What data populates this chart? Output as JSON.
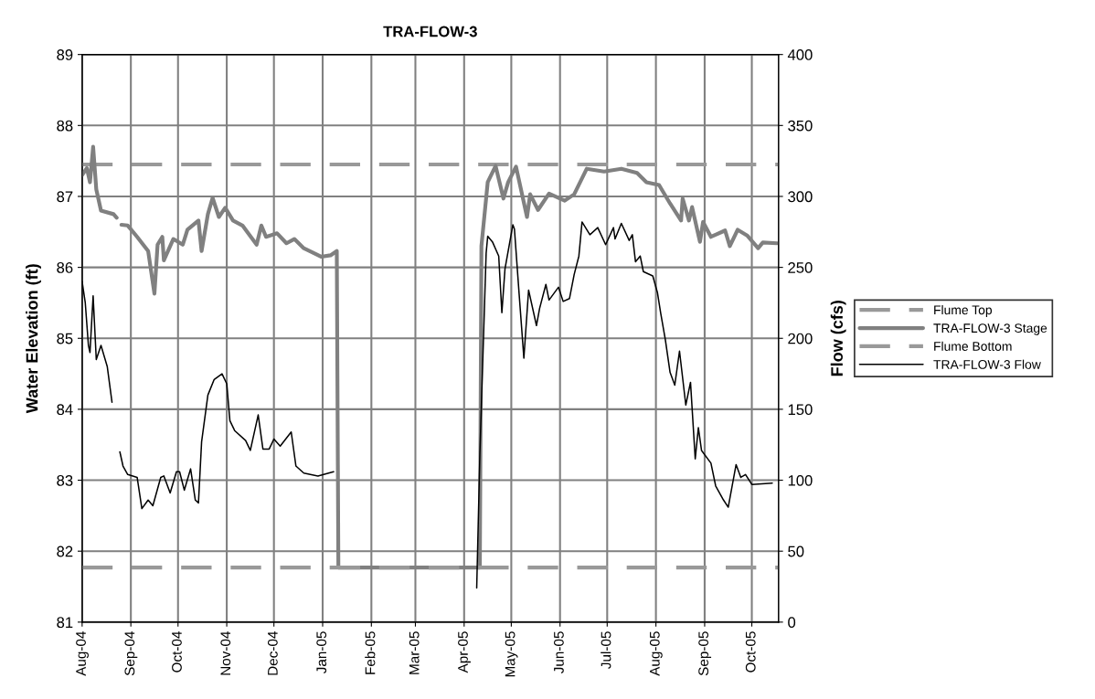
{
  "chart_data": {
    "type": "line",
    "title": "TRA-FLOW-3",
    "ylabel": "Water Elevation (ft)",
    "y2label": "Flow (cfs)",
    "xlim": [
      "2004-08-01",
      "2005-10-18"
    ],
    "xticks": [
      {
        "value": "2004-08-01",
        "label": "Aug-04"
      },
      {
        "value": "2004-09-01",
        "label": "Sep-04"
      },
      {
        "value": "2004-10-01",
        "label": "Oct-04"
      },
      {
        "value": "2004-11-01",
        "label": "Nov-04"
      },
      {
        "value": "2004-12-01",
        "label": "Dec-04"
      },
      {
        "value": "2005-01-01",
        "label": "Jan-05"
      },
      {
        "value": "2005-02-01",
        "label": "Feb-05"
      },
      {
        "value": "2005-03-01",
        "label": "Mar-05"
      },
      {
        "value": "2005-04-01",
        "label": "Apr-05"
      },
      {
        "value": "2005-05-01",
        "label": "May-05"
      },
      {
        "value": "2005-06-01",
        "label": "Jun-05"
      },
      {
        "value": "2005-07-01",
        "label": "Jul-05"
      },
      {
        "value": "2005-08-01",
        "label": "Aug-05"
      },
      {
        "value": "2005-09-01",
        "label": "Sep-05"
      },
      {
        "value": "2005-10-01",
        "label": "Oct-05"
      }
    ],
    "ylim": [
      81,
      89
    ],
    "yticks": [
      81,
      82,
      83,
      84,
      85,
      86,
      87,
      88,
      89
    ],
    "y2lim": [
      0,
      400
    ],
    "y2ticks": [
      0,
      50,
      100,
      150,
      200,
      250,
      300,
      350,
      400
    ],
    "grid": true,
    "legend": "right",
    "marker": "none",
    "series": [
      {
        "name": "Flume Top",
        "color": "#999999",
        "line_style": "dashed",
        "x": [
          "2004-08-01",
          "2005-10-18"
        ],
        "values": [
          87.45,
          87.45
        ]
      },
      {
        "name": "TRA-FLOW-3 Stage",
        "color": "#808080",
        "x": [
          "2004-08-01",
          "2004-08-04",
          "2004-08-06",
          "2004-08-08",
          "2004-08-10",
          "2004-08-13",
          "2004-08-21",
          "2004-08-23",
          "2004-08-24",
          "2004-08-26",
          "2004-08-30",
          "2004-09-05",
          "2004-09-12",
          "2004-09-16",
          "2004-09-18",
          "2004-09-21",
          "2004-09-22",
          "2004-09-28",
          "2004-10-04",
          "2004-10-07",
          "2004-10-14",
          "2004-10-16",
          "2004-10-20",
          "2004-10-23",
          "2004-10-27",
          "2004-10-31",
          "2004-11-05",
          "2004-11-11",
          "2004-11-20",
          "2004-11-23",
          "2004-11-26",
          "2004-12-03",
          "2004-12-09",
          "2004-12-14",
          "2004-12-20",
          "2004-12-31",
          "2005-01-06",
          "2005-01-10",
          "2005-01-11",
          "2005-04-11",
          "2005-04-12",
          "2005-04-16",
          "2005-04-21",
          "2005-04-26",
          "2005-04-29",
          "2005-05-04",
          "2005-05-11",
          "2005-05-13",
          "2005-05-18",
          "2005-05-25",
          "2005-06-04",
          "2005-06-10",
          "2005-06-18",
          "2005-06-29",
          "2005-07-10",
          "2005-07-20",
          "2005-07-26",
          "2005-08-03",
          "2005-08-10",
          "2005-08-17",
          "2005-08-18",
          "2005-08-22",
          "2005-08-24",
          "2005-08-29",
          "2005-08-31",
          "2005-09-05",
          "2005-09-14",
          "2005-09-17",
          "2005-09-22",
          "2005-09-28",
          "2005-10-05",
          "2005-10-08",
          "2005-10-17"
        ],
        "values": [
          87.3,
          87.4,
          87.2,
          87.7,
          87.1,
          86.8,
          86.75,
          86.7,
          null,
          86.6,
          86.59,
          86.43,
          86.23,
          85.63,
          86.32,
          86.43,
          86.1,
          86.4,
          86.32,
          86.53,
          86.66,
          86.23,
          86.75,
          86.98,
          86.71,
          86.84,
          86.66,
          86.59,
          86.32,
          86.59,
          86.43,
          86.48,
          86.34,
          86.4,
          86.27,
          86.15,
          86.17,
          86.23,
          81.77,
          81.77,
          86.3,
          87.2,
          87.43,
          86.97,
          87.2,
          87.42,
          86.71,
          87.03,
          86.81,
          87.04,
          86.94,
          87.03,
          87.39,
          87.35,
          87.39,
          87.33,
          87.2,
          87.16,
          86.9,
          86.66,
          86.97,
          86.66,
          86.85,
          86.36,
          86.64,
          86.43,
          86.52,
          86.3,
          86.53,
          86.45,
          86.27,
          86.35,
          86.34
        ]
      },
      {
        "name": "Flume Bottom",
        "color": "#999999",
        "line_style": "dashed",
        "x": [
          "2004-08-01",
          "2005-10-18"
        ],
        "values": [
          81.77,
          81.77
        ]
      },
      {
        "name": "TRA-FLOW-3 Flow",
        "color": "#000000",
        "axis": "y2",
        "x": [
          "2004-08-01",
          "2004-08-03",
          "2004-08-05",
          "2004-08-06",
          "2004-08-08",
          "2004-08-10",
          "2004-08-13",
          "2004-08-17",
          "2004-08-20",
          "2004-08-22",
          "2004-08-25",
          "2004-08-27",
          "2004-08-30",
          "2004-09-05",
          "2004-09-08",
          "2004-09-12",
          "2004-09-15",
          "2004-09-20",
          "2004-09-22",
          "2004-09-26",
          "2004-09-30",
          "2004-10-02",
          "2004-10-05",
          "2004-10-09",
          "2004-10-12",
          "2004-10-14",
          "2004-10-16",
          "2004-10-20",
          "2004-10-24",
          "2004-10-29",
          "2004-11-01",
          "2004-11-03",
          "2004-11-06",
          "2004-11-13",
          "2004-11-16",
          "2004-11-21",
          "2004-11-24",
          "2004-11-28",
          "2004-12-01",
          "2004-12-05",
          "2004-12-12",
          "2004-12-15",
          "2004-12-20",
          "2004-12-29",
          "2005-01-08",
          "2005-01-09",
          "2005-04-09",
          "2005-04-11",
          "2005-04-15",
          "2005-04-16",
          "2005-04-19",
          "2005-04-23",
          "2005-04-25",
          "2005-04-27",
          "2005-05-02",
          "2005-05-03",
          "2005-05-06",
          "2005-05-09",
          "2005-05-12",
          "2005-05-17",
          "2005-05-19",
          "2005-05-23",
          "2005-05-25",
          "2005-05-31",
          "2005-06-03",
          "2005-06-07",
          "2005-06-10",
          "2005-06-13",
          "2005-06-15",
          "2005-06-20",
          "2005-06-25",
          "2005-06-30",
          "2005-07-05",
          "2005-07-06",
          "2005-07-10",
          "2005-07-15",
          "2005-07-17",
          "2005-07-19",
          "2005-07-22",
          "2005-07-24",
          "2005-07-30",
          "2005-08-02",
          "2005-08-04",
          "2005-08-07",
          "2005-08-10",
          "2005-08-13",
          "2005-08-16",
          "2005-08-20",
          "2005-08-23",
          "2005-08-26",
          "2005-08-28",
          "2005-08-30",
          "2005-09-05",
          "2005-09-08",
          "2005-09-13",
          "2005-09-16",
          "2005-09-21",
          "2005-09-24",
          "2005-09-27",
          "2005-10-01",
          "2005-10-14"
        ],
        "values": [
          240,
          225,
          195,
          190,
          230,
          185,
          195,
          180,
          155,
          null,
          120,
          110,
          104,
          102,
          80,
          86,
          82,
          102,
          103,
          91,
          106,
          106,
          93,
          108,
          86,
          84,
          127,
          160,
          171,
          175,
          168,
          142,
          135,
          128,
          121,
          146,
          122,
          122,
          129,
          124,
          134,
          110,
          105,
          103,
          106,
          null,
          24,
          118,
          260,
          272,
          268,
          258,
          218,
          249,
          280,
          277,
          231,
          186,
          234,
          209,
          221,
          238,
          227,
          236,
          226,
          228,
          245,
          258,
          282,
          273,
          278,
          266,
          278,
          270,
          281,
          269,
          273,
          254,
          258,
          247,
          244,
          232,
          218,
          199,
          176,
          167,
          191,
          153,
          169,
          115,
          137,
          121,
          112,
          96,
          86,
          81,
          111,
          102,
          104,
          97,
          98
        ]
      }
    ]
  }
}
